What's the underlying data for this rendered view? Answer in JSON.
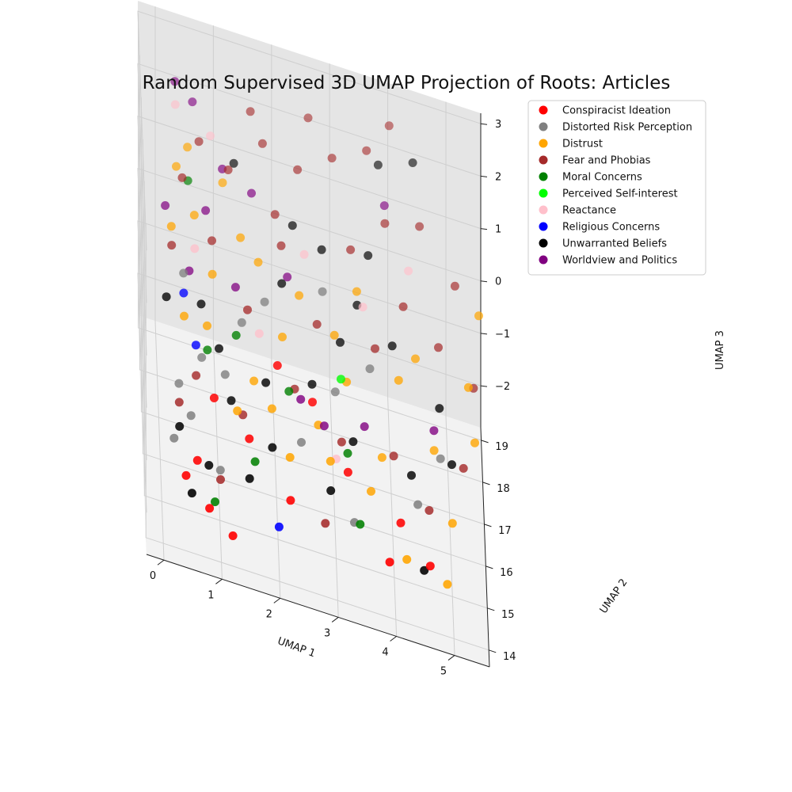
{
  "chart_data": {
    "type": "scatter",
    "projection": "3d",
    "title": "Random Supervised 3D UMAP Projection of Roots: Articles",
    "xlabel": "UMAP 1",
    "ylabel": "UMAP 2",
    "zlabel": "UMAP 3",
    "xlim": [
      -0.3,
      5.6
    ],
    "ylim": [
      13.6,
      19.3
    ],
    "zlim": [
      -2.8,
      3.2
    ],
    "xticks": [
      "0",
      "1",
      "2",
      "3",
      "4",
      "5"
    ],
    "yticks": [
      "14",
      "15",
      "16",
      "17",
      "18",
      "19"
    ],
    "zticks": [
      "−2",
      "−1",
      "0",
      "1",
      "2",
      "3"
    ],
    "grid": true,
    "legend_position": "top-right",
    "series": [
      {
        "name": "Conspiracist Ideation",
        "color": "#ff0000",
        "points": [
          [
            0.4,
            14.3,
            -1.6
          ],
          [
            0.6,
            14.5,
            -1.4
          ],
          [
            0.8,
            14.2,
            -2.0
          ],
          [
            1.2,
            14.1,
            -2.3
          ],
          [
            2.2,
            14.4,
            -1.5
          ],
          [
            3.9,
            14.2,
            -1.9
          ],
          [
            4.6,
            14.3,
            -1.8
          ],
          [
            1.5,
            14.8,
            -0.9
          ],
          [
            2.6,
            15.3,
            -0.2
          ],
          [
            3.2,
            14.9,
            -1.0
          ],
          [
            4.1,
            14.6,
            -1.4
          ],
          [
            0.9,
            15.0,
            -0.5
          ],
          [
            2.0,
            15.4,
            0.2
          ]
        ]
      },
      {
        "name": "Distorted Risk Perception",
        "color": "#808080",
        "points": [
          [
            0.2,
            14.6,
            -1.2
          ],
          [
            0.3,
            15.2,
            -0.6
          ],
          [
            0.5,
            14.9,
            -0.9
          ],
          [
            0.7,
            15.5,
            -0.2
          ],
          [
            1.0,
            14.7,
            -1.6
          ],
          [
            1.4,
            15.9,
            0.4
          ],
          [
            2.4,
            15.0,
            -0.8
          ],
          [
            3.0,
            15.6,
            -0.1
          ],
          [
            3.6,
            15.8,
            0.4
          ],
          [
            4.4,
            14.8,
            -1.1
          ],
          [
            4.8,
            15.2,
            -0.4
          ],
          [
            1.8,
            16.2,
            0.7
          ],
          [
            0.4,
            16.0,
            0.9
          ],
          [
            3.3,
            14.5,
            -1.6
          ],
          [
            2.8,
            16.4,
            1.1
          ],
          [
            1.1,
            15.4,
            -0.3
          ]
        ]
      },
      {
        "name": "Distrust",
        "color": "#ffa500",
        "points": [
          [
            0.2,
            16.4,
            1.4
          ],
          [
            0.3,
            17.0,
            2.1
          ],
          [
            0.6,
            16.6,
            1.6
          ],
          [
            0.5,
            17.3,
            2.3
          ],
          [
            0.9,
            16.2,
            0.9
          ],
          [
            1.1,
            17.1,
            2.0
          ],
          [
            1.4,
            16.8,
            1.3
          ],
          [
            1.6,
            15.6,
            -0.4
          ],
          [
            2.1,
            16.0,
            0.3
          ],
          [
            2.4,
            16.5,
            0.8
          ],
          [
            2.7,
            15.3,
            -0.6
          ],
          [
            3.0,
            16.2,
            0.5
          ],
          [
            3.4,
            16.8,
            1.0
          ],
          [
            3.8,
            15.4,
            -0.9
          ],
          [
            4.1,
            16.0,
            0.2
          ],
          [
            4.4,
            16.4,
            0.4
          ],
          [
            4.7,
            15.6,
            -0.6
          ],
          [
            5.0,
            15.0,
            -1.4
          ],
          [
            5.3,
            16.0,
            0.5
          ],
          [
            5.4,
            15.6,
            -0.2
          ],
          [
            4.9,
            14.5,
            -2.2
          ],
          [
            3.6,
            15.0,
            -1.3
          ],
          [
            2.2,
            14.8,
            -1.0
          ],
          [
            1.3,
            15.0,
            -0.6
          ],
          [
            0.8,
            15.8,
            0.2
          ],
          [
            0.4,
            15.6,
            0.4
          ],
          [
            1.9,
            15.2,
            -0.5
          ],
          [
            2.9,
            14.9,
            -0.9
          ],
          [
            4.2,
            14.4,
            -1.9
          ],
          [
            5.5,
            16.8,
            1.3
          ],
          [
            3.2,
            15.8,
            0.0
          ],
          [
            1.7,
            16.6,
            1.1
          ]
        ]
      },
      {
        "name": "Fear and Phobias",
        "color": "#a52a2a",
        "points": [
          [
            0.2,
            16.2,
            1.2
          ],
          [
            0.4,
            16.9,
            2.0
          ],
          [
            0.7,
            17.4,
            2.4
          ],
          [
            0.9,
            16.5,
            1.3
          ],
          [
            1.2,
            17.2,
            2.2
          ],
          [
            1.5,
            16.0,
            0.6
          ],
          [
            1.8,
            17.6,
            2.6
          ],
          [
            2.1,
            16.8,
            1.4
          ],
          [
            2.4,
            17.5,
            2.4
          ],
          [
            2.7,
            16.2,
            0.6
          ],
          [
            3.0,
            17.8,
            2.6
          ],
          [
            3.3,
            17.0,
            1.6
          ],
          [
            3.6,
            18.0,
            2.8
          ],
          [
            3.9,
            17.4,
            2.0
          ],
          [
            4.2,
            16.8,
            1.0
          ],
          [
            4.5,
            17.6,
            2.0
          ],
          [
            4.8,
            16.6,
            0.6
          ],
          [
            5.1,
            17.2,
            1.4
          ],
          [
            5.4,
            16.4,
            0.2
          ],
          [
            0.6,
            15.4,
            -0.5
          ],
          [
            1.4,
            15.2,
            -0.8
          ],
          [
            2.3,
            15.6,
            -0.3
          ],
          [
            3.1,
            15.2,
            -0.7
          ],
          [
            4.0,
            15.4,
            -0.8
          ],
          [
            4.6,
            15.0,
            -1.3
          ],
          [
            1.0,
            14.6,
            -1.7
          ],
          [
            2.8,
            14.5,
            -1.8
          ],
          [
            3.7,
            16.2,
            0.5
          ],
          [
            2.0,
            17.0,
            1.8
          ],
          [
            1.6,
            17.9,
            2.9
          ],
          [
            4.0,
            18.4,
            3.1
          ],
          [
            0.3,
            15.0,
            -0.8
          ],
          [
            2.6,
            18.2,
            2.9
          ],
          [
            5.2,
            15.4,
            -0.6
          ]
        ]
      },
      {
        "name": "Moral Concerns",
        "color": "#008000",
        "points": [
          [
            0.5,
            17.0,
            1.9
          ],
          [
            0.8,
            15.6,
            -0.1
          ],
          [
            1.3,
            15.8,
            0.2
          ],
          [
            1.6,
            14.8,
            -1.3
          ],
          [
            2.2,
            15.5,
            -0.3
          ],
          [
            3.2,
            15.1,
            -0.8
          ],
          [
            0.9,
            14.4,
            -2.0
          ],
          [
            3.4,
            14.5,
            -1.6
          ]
        ]
      },
      {
        "name": "Perceived Self-interest",
        "color": "#00ff00",
        "points": [
          [
            3.1,
            15.7,
            0.1
          ]
        ]
      },
      {
        "name": "Reactance",
        "color": "#ffc0cb",
        "points": [
          [
            0.3,
            17.6,
            2.8
          ],
          [
            0.6,
            16.3,
            1.2
          ],
          [
            1.7,
            15.9,
            0.3
          ],
          [
            3.5,
            16.6,
            0.9
          ],
          [
            4.3,
            17.2,
            1.4
          ],
          [
            2.5,
            16.9,
            1.3
          ],
          [
            0.9,
            17.5,
            2.5
          ],
          [
            3.0,
            15.0,
            -0.9
          ]
        ]
      },
      {
        "name": "Religious Concerns",
        "color": "#0000ff",
        "points": [
          [
            0.4,
            15.9,
            0.6
          ],
          [
            0.6,
            15.5,
            0.0
          ],
          [
            2.0,
            14.3,
            -2.0
          ]
        ]
      },
      {
        "name": "Unwarranted Beliefs",
        "color": "#000000",
        "points": [
          [
            0.1,
            15.8,
            0.5
          ],
          [
            0.3,
            14.8,
            -1.1
          ],
          [
            0.5,
            14.3,
            -1.9
          ],
          [
            0.8,
            14.6,
            -1.5
          ],
          [
            1.0,
            15.6,
            0.0
          ],
          [
            1.2,
            15.2,
            -0.6
          ],
          [
            1.5,
            14.6,
            -1.5
          ],
          [
            1.8,
            15.4,
            -0.2
          ],
          [
            2.1,
            16.4,
            1.0
          ],
          [
            2.3,
            17.0,
            1.7
          ],
          [
            2.6,
            15.6,
            -0.1
          ],
          [
            2.8,
            16.9,
            1.5
          ],
          [
            3.1,
            16.2,
            0.4
          ],
          [
            3.3,
            15.3,
            -0.7
          ],
          [
            3.6,
            17.0,
            1.6
          ],
          [
            3.8,
            18.0,
            2.6
          ],
          [
            4.0,
            16.4,
            0.5
          ],
          [
            4.3,
            15.2,
            -0.9
          ],
          [
            4.5,
            14.4,
            -2.0
          ],
          [
            4.8,
            15.9,
            0.0
          ],
          [
            5.0,
            15.4,
            -0.6
          ],
          [
            1.3,
            17.4,
            2.2
          ],
          [
            0.7,
            15.9,
            0.5
          ],
          [
            2.9,
            14.7,
            -1.3
          ],
          [
            1.9,
            14.9,
            -1.0
          ],
          [
            4.4,
            18.2,
            2.7
          ],
          [
            3.4,
            16.6,
            0.9
          ]
        ]
      },
      {
        "name": "Worldview and Politics",
        "color": "#800080",
        "points": [
          [
            0.1,
            16.6,
            1.6
          ],
          [
            0.3,
            17.9,
            3.0
          ],
          [
            0.5,
            16.1,
            0.9
          ],
          [
            0.8,
            16.8,
            1.6
          ],
          [
            1.1,
            17.3,
            2.1
          ],
          [
            1.3,
            16.2,
            0.8
          ],
          [
            1.6,
            17.2,
            1.9
          ],
          [
            2.4,
            15.4,
            -0.3
          ],
          [
            2.8,
            15.2,
            -0.5
          ],
          [
            3.5,
            15.5,
            -0.5
          ],
          [
            4.7,
            15.7,
            -0.3
          ],
          [
            0.6,
            17.8,
            2.8
          ],
          [
            2.2,
            16.6,
            1.0
          ],
          [
            3.9,
            17.7,
            2.1
          ]
        ]
      }
    ]
  }
}
